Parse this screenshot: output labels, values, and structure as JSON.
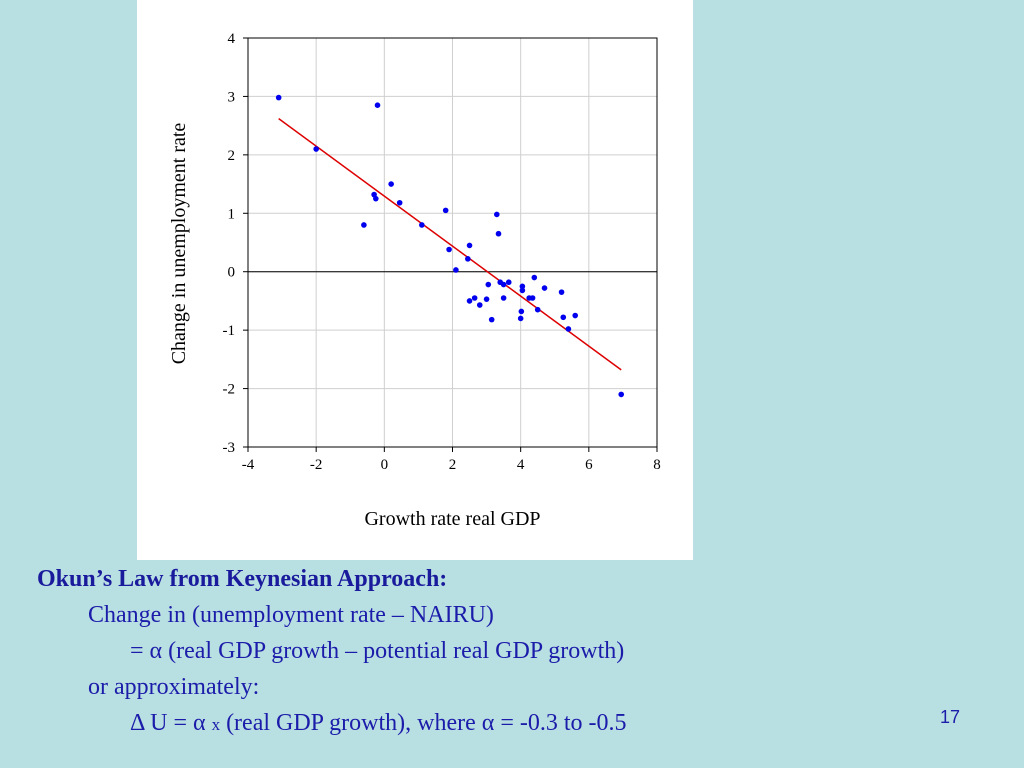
{
  "chart_data": {
    "type": "scatter",
    "title": "",
    "xlabel": "Growth rate real GDP",
    "ylabel": "Change in unemployment rate",
    "xlim": [
      -4,
      8
    ],
    "ylim": [
      -3,
      4
    ],
    "xticks": [
      -4,
      -2,
      0,
      2,
      4,
      6,
      8
    ],
    "yticks": [
      -3,
      -2,
      -1,
      0,
      1,
      2,
      3,
      4
    ],
    "grid": true,
    "zero_line": true,
    "point_color": "#0000ee",
    "line_color": "#dd0000",
    "points": [
      {
        "x": -3.1,
        "y": 2.98
      },
      {
        "x": -2.0,
        "y": 2.1
      },
      {
        "x": -0.2,
        "y": 2.85
      },
      {
        "x": -0.6,
        "y": 0.8
      },
      {
        "x": -0.3,
        "y": 1.32
      },
      {
        "x": -0.25,
        "y": 1.25
      },
      {
        "x": 0.2,
        "y": 1.5
      },
      {
        "x": 0.45,
        "y": 1.18
      },
      {
        "x": 1.1,
        "y": 0.8
      },
      {
        "x": 1.8,
        "y": 1.05
      },
      {
        "x": 1.9,
        "y": 0.38
      },
      {
        "x": 2.1,
        "y": 0.03
      },
      {
        "x": 2.5,
        "y": 0.45
      },
      {
        "x": 2.45,
        "y": 0.22
      },
      {
        "x": 2.5,
        "y": -0.5
      },
      {
        "x": 2.65,
        "y": -0.45
      },
      {
        "x": 2.8,
        "y": -0.57
      },
      {
        "x": 3.0,
        "y": -0.47
      },
      {
        "x": 3.05,
        "y": -0.22
      },
      {
        "x": 3.15,
        "y": -0.82
      },
      {
        "x": 3.3,
        "y": 0.98
      },
      {
        "x": 3.35,
        "y": 0.65
      },
      {
        "x": 3.4,
        "y": -0.18
      },
      {
        "x": 3.5,
        "y": -0.22
      },
      {
        "x": 3.5,
        "y": -0.45
      },
      {
        "x": 3.65,
        "y": -0.18
      },
      {
        "x": 4.0,
        "y": -0.8
      },
      {
        "x": 4.02,
        "y": -0.68
      },
      {
        "x": 4.05,
        "y": -0.25
      },
      {
        "x": 4.05,
        "y": -0.32
      },
      {
        "x": 4.25,
        "y": -0.45
      },
      {
        "x": 4.35,
        "y": -0.45
      },
      {
        "x": 4.4,
        "y": -0.1
      },
      {
        "x": 4.5,
        "y": -0.65
      },
      {
        "x": 4.7,
        "y": -0.28
      },
      {
        "x": 5.2,
        "y": -0.35
      },
      {
        "x": 5.25,
        "y": -0.78
      },
      {
        "x": 5.4,
        "y": -0.98
      },
      {
        "x": 5.6,
        "y": -0.75
      },
      {
        "x": 6.95,
        "y": -2.1
      }
    ],
    "fit_line": {
      "x": [
        -3.1,
        6.95
      ],
      "y": [
        2.62,
        -1.68
      ]
    }
  },
  "text": {
    "title": "Okun’s Law from Keynesian Approach:",
    "line1": "Change in (unemployment rate – NAIRU)",
    "line2": "=  α (real GDP growth – potential real GDP growth)",
    "line3": "or approximately:",
    "line4a": "Δ U = α ",
    "line4b": "x",
    "line4c": " (real GDP growth), where α  = -0.3 to -0.5"
  },
  "slide_number": "17"
}
